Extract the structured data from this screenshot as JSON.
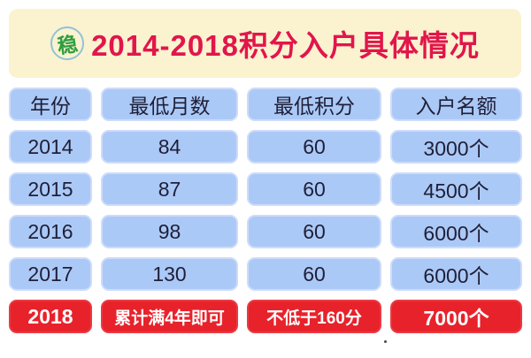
{
  "title": {
    "text": "2014-2018积分入户具体情况",
    "seal_char": "稳"
  },
  "colors": {
    "banner_bg": "#fbf2d0",
    "title_text": "#e1164b",
    "seal_green": "#2f9e3f",
    "cell_blue": "#abc9f6",
    "cell_blue_border": "#cddcfa",
    "cell_text": "#1f1f38",
    "highlight_red": "#e7222b",
    "highlight_text": "#ffffff"
  },
  "chart_data": {
    "type": "table",
    "title": "2014-2018积分入户具体情况",
    "columns": [
      "年份",
      "最低月数",
      "最低积分",
      "入户名额"
    ],
    "rows": [
      [
        "2014",
        "84",
        "60",
        "3000个"
      ],
      [
        "2015",
        "87",
        "60",
        "4500个"
      ],
      [
        "2016",
        "98",
        "60",
        "6000个"
      ],
      [
        "2017",
        "130",
        "60",
        "6000个"
      ],
      [
        "2018",
        "累计满4年即可",
        "不低于160分",
        "7000个"
      ]
    ],
    "highlight_row": "2018"
  }
}
